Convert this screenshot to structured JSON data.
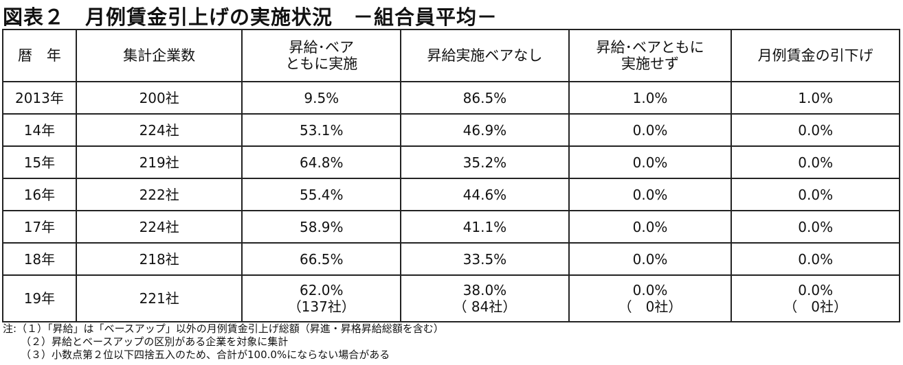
{
  "title": "図表２　月例賃金引上げの実施状況　－組合員平均－",
  "table": {
    "header": [
      [
        "暦　年"
      ],
      [
        "集計企業数"
      ],
      [
        "昇給･ベア",
        "ともに実施"
      ],
      [
        "昇給実施ベアなし"
      ],
      [
        "昇給･ベアともに",
        "実施せず"
      ],
      [
        "月例賃金の引下げ"
      ]
    ],
    "rows": [
      [
        [
          "2013年"
        ],
        [
          "200社"
        ],
        [
          "9.5%"
        ],
        [
          "86.5%"
        ],
        [
          "1.0%"
        ],
        [
          "1.0%"
        ]
      ],
      [
        [
          "14年"
        ],
        [
          "224社"
        ],
        [
          "53.1%"
        ],
        [
          "46.9%"
        ],
        [
          "0.0%"
        ],
        [
          "0.0%"
        ]
      ],
      [
        [
          "15年"
        ],
        [
          "219社"
        ],
        [
          "64.8%"
        ],
        [
          "35.2%"
        ],
        [
          "0.0%"
        ],
        [
          "0.0%"
        ]
      ],
      [
        [
          "16年"
        ],
        [
          "222社"
        ],
        [
          "55.4%"
        ],
        [
          "44.6%"
        ],
        [
          "0.0%"
        ],
        [
          "0.0%"
        ]
      ],
      [
        [
          "17年"
        ],
        [
          "224社"
        ],
        [
          "58.9%"
        ],
        [
          "41.1%"
        ],
        [
          "0.0%"
        ],
        [
          "0.0%"
        ]
      ],
      [
        [
          "18年"
        ],
        [
          "218社"
        ],
        [
          "66.5%"
        ],
        [
          "33.5%"
        ],
        [
          "0.0%"
        ],
        [
          "0.0%"
        ]
      ],
      [
        [
          "19年"
        ],
        [
          "221社"
        ],
        [
          "62.0%",
          "（137社）"
        ],
        [
          "38.0%",
          "（ 84社）"
        ],
        [
          "0.0%",
          "（　0社）"
        ],
        [
          "0.0%",
          "（　0社）"
        ]
      ]
    ]
  },
  "notes": [
    "注:（１）「昇給」は「ベースアップ」以外の月例賃金引上げ総額（昇進・昇格昇給総額を含む）",
    "（２）昇給とベースアップの区別がある企業を対象に集計",
    "（３）小数点第２位以下四捨五入のため、合計が100.0%にならない場合がある"
  ]
}
